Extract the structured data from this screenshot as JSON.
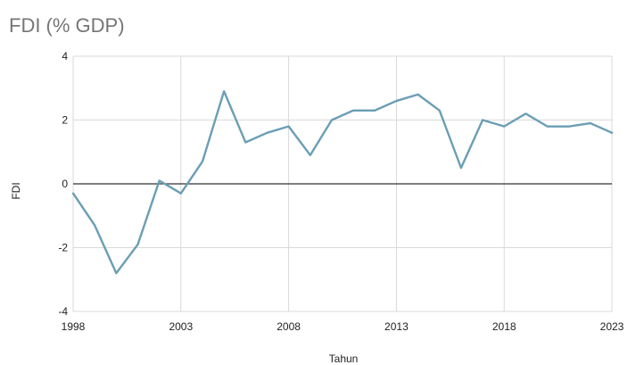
{
  "chart_data": {
    "type": "line",
    "title": "FDI (% GDP)",
    "xlabel": "Tahun",
    "ylabel": "FDI",
    "x": [
      1998,
      1999,
      2000,
      2001,
      2002,
      2003,
      2004,
      2005,
      2006,
      2007,
      2008,
      2009,
      2010,
      2011,
      2012,
      2013,
      2014,
      2015,
      2016,
      2017,
      2018,
      2019,
      2020,
      2021,
      2022,
      2023
    ],
    "series": [
      {
        "values": [
          -0.3,
          -1.3,
          -2.8,
          -1.9,
          0.1,
          -0.3,
          0.7,
          2.9,
          1.3,
          1.6,
          1.8,
          0.9,
          2.0,
          2.3,
          2.3,
          2.6,
          2.8,
          2.3,
          0.5,
          2.0,
          1.8,
          2.2,
          1.8,
          1.8,
          1.9,
          1.6
        ],
        "color": "#6b9eb5"
      }
    ],
    "xlim": [
      1998,
      2023
    ],
    "ylim": [
      -4,
      4
    ],
    "x_ticks": [
      "1998",
      "2003",
      "2008",
      "2013",
      "2018",
      "2023"
    ],
    "y_ticks": [
      "4",
      "2",
      "0",
      "-2",
      "-4"
    ],
    "grid": true,
    "legend": "none",
    "colors": {
      "line": "#6b9eb5",
      "grid": "#d9d9d9",
      "zero_line": "#333333",
      "title": "#757575",
      "text": "#222222"
    }
  }
}
